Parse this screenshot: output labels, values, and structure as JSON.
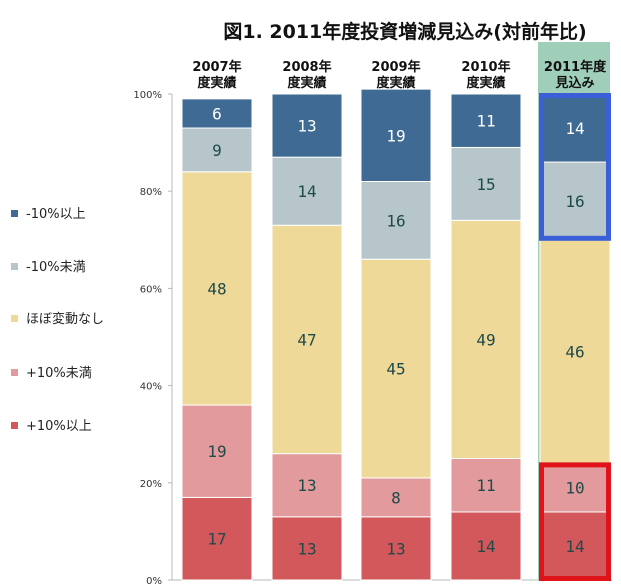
{
  "chart_data": {
    "type": "bar",
    "stacked": true,
    "title": "図1. 2011年度投資増減見込み(対前年比)",
    "categories": [
      "2007年\n度実績",
      "2008年\n度実績",
      "2009年\n度実績",
      "2010年\n度実績",
      "2011年度\n見込み"
    ],
    "series": [
      {
        "name": "+10%以上",
        "color": "#d2585c",
        "values": [
          17,
          13,
          13,
          14,
          14
        ]
      },
      {
        "name": "+10%未満",
        "color": "#e39a9c",
        "values": [
          19,
          13,
          8,
          11,
          10
        ]
      },
      {
        "name": "ほぼ変動なし",
        "color": "#efd998",
        "values": [
          48,
          47,
          45,
          49,
          46
        ]
      },
      {
        "name": "-10%未満",
        "color": "#b7c6cb",
        "values": [
          9,
          14,
          16,
          15,
          16
        ]
      },
      {
        "name": "-10%以上",
        "color": "#3e6a93",
        "values": [
          6,
          13,
          19,
          11,
          14
        ]
      }
    ],
    "ylim": [
      0,
      100
    ],
    "yticks": [
      "0%",
      "20%",
      "40%",
      "60%",
      "80%",
      "100%"
    ],
    "legend_position": "left",
    "highlight_column_color": "#9fcfb8",
    "highlights": [
      {
        "category_index": 4,
        "series": [
          "-10%以上",
          "-10%未満"
        ],
        "color": "#3a5fd8"
      },
      {
        "category_index": 4,
        "series": [
          "+10%以上",
          "+10%未満"
        ],
        "color": "#e0131b"
      }
    ],
    "label_colors": {
      "on_dark": "#ffffff",
      "on_light": "#1e4a4a"
    }
  }
}
